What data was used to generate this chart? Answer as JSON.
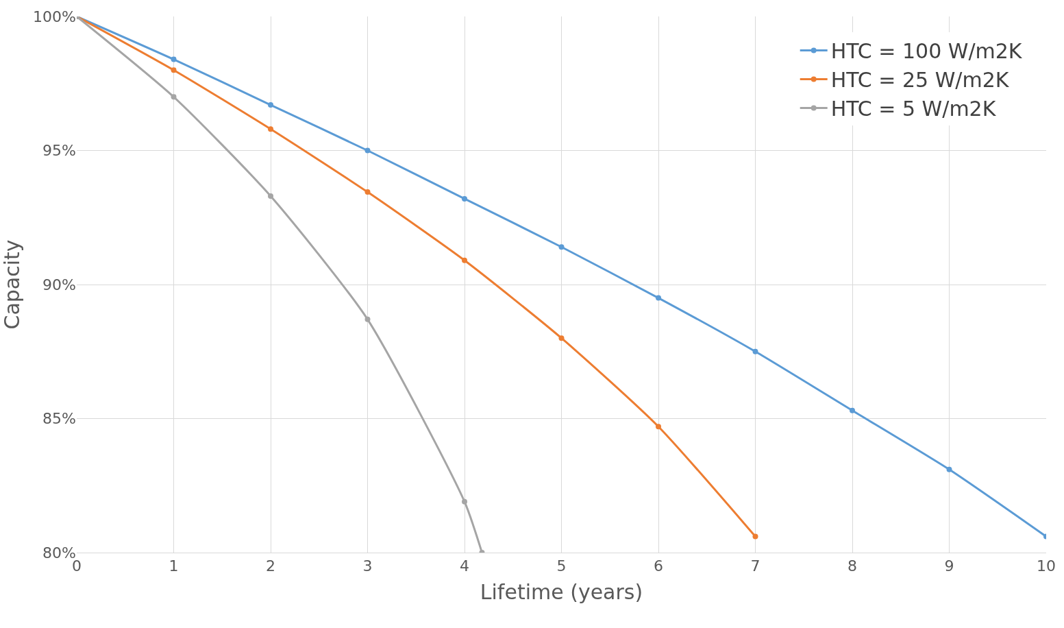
{
  "chart_data": {
    "type": "line",
    "xlabel": "Lifetime (years)",
    "ylabel": "Capacity",
    "xlim": [
      0,
      10
    ],
    "xticks": [
      0,
      1,
      2,
      3,
      4,
      5,
      6,
      7,
      8,
      9,
      10
    ],
    "ylim": [
      80,
      100
    ],
    "yticks": [
      {
        "value": 80,
        "label": "80%"
      },
      {
        "value": 85,
        "label": "85%"
      },
      {
        "value": 90,
        "label": "90%"
      },
      {
        "value": 95,
        "label": "95%"
      },
      {
        "value": 100,
        "label": "100%"
      }
    ],
    "grid": true,
    "legend": "top right",
    "marker": "circle",
    "line_style": "solid",
    "series": [
      {
        "name": "HTC = 100 W/m2K",
        "color": "#5b9bd5",
        "x": [
          0,
          1,
          2,
          3,
          4,
          5,
          6,
          7,
          8,
          9,
          10
        ],
        "values": [
          100,
          98.4,
          96.7,
          95.0,
          93.2,
          91.4,
          89.5,
          87.5,
          85.3,
          83.1,
          80.6
        ]
      },
      {
        "name": "HTC = 25 W/m2K",
        "color": "#ed7d31",
        "x": [
          0,
          1,
          2,
          3,
          4,
          5,
          6,
          7
        ],
        "values": [
          100,
          98.0,
          95.8,
          93.45,
          90.9,
          88.0,
          84.7,
          80.6
        ]
      },
      {
        "name": "HTC = 5 W/m2K",
        "color": "#a5a5a5",
        "x": [
          0,
          1,
          2,
          3,
          4,
          4.18
        ],
        "values": [
          100,
          97.0,
          93.3,
          88.7,
          81.9,
          80.0
        ]
      }
    ]
  }
}
